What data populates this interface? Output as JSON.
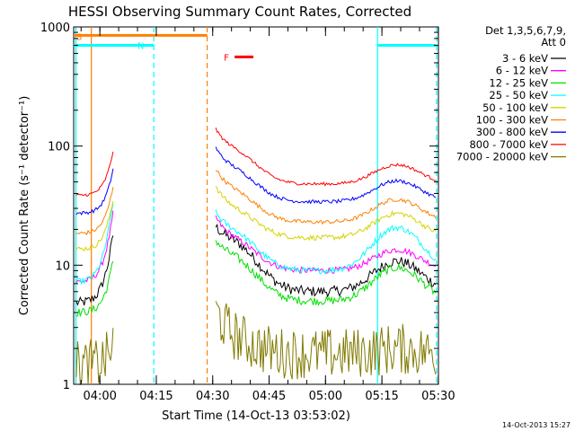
{
  "chart_data": {
    "type": "line",
    "title": "HESSI Observing Summary Count Rates, Corrected",
    "xlabel": "Start Time (14-Oct-13 03:53:02)",
    "ylabel": "Corrected Count Rate (s⁻¹ detector⁻¹)",
    "yscale": "log",
    "ylim": [
      1,
      1000
    ],
    "xlim_minutes": [
      0,
      97
    ],
    "x_ticks": [
      {
        "label": "04:00",
        "value": 6.97
      },
      {
        "label": "04:15",
        "value": 21.97
      },
      {
        "label": "04:30",
        "value": 36.97
      },
      {
        "label": "04:45",
        "value": 51.97
      },
      {
        "label": "05:00",
        "value": 66.97
      },
      {
        "label": "05:15",
        "value": 81.97
      },
      {
        "label": "05:30",
        "value": 96.97
      }
    ],
    "y_ticks": [
      {
        "label": "1",
        "value": 1
      },
      {
        "label": "10",
        "value": 10
      },
      {
        "label": "100",
        "value": 100
      },
      {
        "label": "1000",
        "value": 1000
      }
    ],
    "legend_header": [
      "Det 1,3,5,6,7,9,",
      "Att 0"
    ],
    "legend_placement": "right",
    "series": [
      {
        "name": "3 - 6 keV",
        "color": "#000000"
      },
      {
        "name": "6 - 12 keV",
        "color": "#ff00ff"
      },
      {
        "name": "12 - 25 keV",
        "color": "#00e000"
      },
      {
        "name": "25 - 50 keV",
        "color": "#00ffff"
      },
      {
        "name": "50 - 100 keV",
        "color": "#d4d400"
      },
      {
        "name": "100 - 300 keV",
        "color": "#ff7f00"
      },
      {
        "name": "300 - 800 keV",
        "color": "#0000ff"
      },
      {
        "name": "800 - 7000 keV",
        "color": "#ff0000"
      },
      {
        "name": "7000 - 20000 keV",
        "color": "#807a00"
      }
    ],
    "gaps_minutes": [
      [
        10.5,
        37.5
      ]
    ],
    "flag_bars": [
      {
        "label": "S",
        "color": "#ff7f00",
        "start": 0,
        "end": 35.5,
        "level": 850
      },
      {
        "label": "N",
        "color": "#00ffff",
        "start": 0,
        "end": 21.3,
        "level": 700
      },
      {
        "label": "F",
        "color": "#ff0000",
        "start": 42.8,
        "end": 47.8,
        "level": 560
      },
      {
        "label": "",
        "color": "#00ffff",
        "start": 80.8,
        "end": 96.5,
        "level": 700
      }
    ],
    "vertical_lines": [
      {
        "value": 0.6,
        "color": "#00ffff",
        "style": "solid"
      },
      {
        "value": 21.3,
        "color": "#00ffff",
        "style": "dashed"
      },
      {
        "value": 80.8,
        "color": "#00ffff",
        "style": "solid"
      },
      {
        "value": 96.5,
        "color": "#00ffff",
        "style": "dashed"
      },
      {
        "value": 4.7,
        "color": "#ff7f00",
        "style": "solid"
      },
      {
        "value": 35.5,
        "color": "#ff7f00",
        "style": "dashed"
      }
    ]
  },
  "footer": {
    "timestamp": "14-Oct-2013 15:27"
  }
}
